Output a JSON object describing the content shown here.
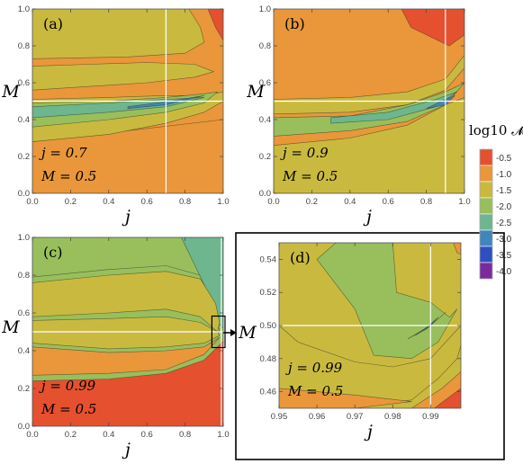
{
  "chart_data": [
    {
      "id": "a",
      "type": "contour",
      "panel_label": "(a)",
      "xlabel": "j",
      "ylabel": "M",
      "xlim": [
        0,
        1
      ],
      "ylim": [
        0,
        1
      ],
      "xticks": [
        "0.0",
        "0.2",
        "0.4",
        "0.6",
        "0.8",
        "1.0"
      ],
      "yticks": [
        "0.0",
        "0.2",
        "0.4",
        "0.6",
        "0.8",
        "1.0"
      ],
      "crosshair": {
        "j": 0.7,
        "M": 0.5
      },
      "annotation": [
        "j = 0.7",
        "M = 0.5"
      ],
      "regions": [
        {
          "level": -1.0,
          "polygon": [
            [
              0,
              0
            ],
            [
              1,
              0
            ],
            [
              1,
              0.4
            ],
            [
              0,
              0.28
            ]
          ]
        },
        {
          "level": -1.5,
          "polygon": [
            [
              0,
              0.28
            ],
            [
              0.4,
              0.32
            ],
            [
              0.7,
              0.38
            ],
            [
              0.9,
              0.44
            ],
            [
              1,
              0.5
            ],
            [
              1,
              0.55
            ],
            [
              0.9,
              0.53
            ],
            [
              0.7,
              0.53
            ],
            [
              0.4,
              0.52
            ],
            [
              0,
              0.51
            ]
          ]
        },
        {
          "level": -2.0,
          "polygon": [
            [
              0,
              0.36
            ],
            [
              0.4,
              0.4
            ],
            [
              0.7,
              0.44
            ],
            [
              0.9,
              0.49
            ],
            [
              0.97,
              0.55
            ],
            [
              0.9,
              0.54
            ],
            [
              0.7,
              0.52
            ],
            [
              0.4,
              0.5
            ],
            [
              0,
              0.49
            ]
          ]
        },
        {
          "level": -2.5,
          "polygon": [
            [
              0,
              0.41
            ],
            [
              0.4,
              0.44
            ],
            [
              0.7,
              0.47
            ],
            [
              0.9,
              0.52
            ],
            [
              0.7,
              0.51
            ],
            [
              0.4,
              0.49
            ],
            [
              0,
              0.47
            ]
          ]
        },
        {
          "level": -3.0,
          "polygon": [
            [
              0.5,
              0.46
            ],
            [
              0.7,
              0.48
            ],
            [
              0.9,
              0.53
            ],
            [
              0.72,
              0.5
            ],
            [
              0.5,
              0.47
            ]
          ]
        },
        {
          "level": -1.5,
          "polygon": [
            [
              0,
              0.56
            ],
            [
              0.3,
              0.58
            ],
            [
              0.6,
              0.6
            ],
            [
              0.85,
              0.63
            ],
            [
              0.95,
              0.66
            ],
            [
              0.85,
              0.7
            ],
            [
              0.6,
              0.71
            ],
            [
              0.3,
              0.7
            ],
            [
              0,
              0.69
            ]
          ]
        },
        {
          "level": -1.5,
          "polygon": [
            [
              0,
              0.73
            ],
            [
              0.5,
              0.74
            ],
            [
              0.8,
              0.76
            ],
            [
              0.9,
              0.82
            ],
            [
              0.88,
              0.9
            ],
            [
              0.82,
              1
            ],
            [
              0,
              1
            ]
          ]
        },
        {
          "level": -0.5,
          "polygon": [
            [
              0.92,
              1
            ],
            [
              1,
              1
            ],
            [
              1,
              0.83
            ],
            [
              0.96,
              0.9
            ]
          ]
        }
      ]
    },
    {
      "id": "b",
      "type": "contour",
      "panel_label": "(b)",
      "xlabel": "j",
      "ylabel": "",
      "xlim": [
        0,
        1
      ],
      "ylim": [
        0,
        1
      ],
      "xticks": [
        "0.0",
        "0.2",
        "0.4",
        "0.6",
        "0.8",
        "1.0"
      ],
      "yticks": [
        "0.0",
        "0.2",
        "0.4",
        "0.6",
        "0.8",
        "1.0"
      ],
      "crosshair": {
        "j": 0.9,
        "M": 0.5
      },
      "annotation": [
        "j = 0.9",
        "M = 0.5"
      ],
      "regions": [
        {
          "level": -1.5,
          "polygon": [
            [
              0,
              0
            ],
            [
              1,
              0
            ],
            [
              1,
              0.52
            ],
            [
              0.9,
              0.48
            ],
            [
              0.7,
              0.37
            ],
            [
              0.4,
              0.3
            ],
            [
              0,
              0.26
            ]
          ]
        },
        {
          "level": -1.5,
          "polygon": [
            [
              0,
              0.43
            ],
            [
              0.4,
              0.44
            ],
            [
              0.7,
              0.48
            ],
            [
              0.9,
              0.56
            ],
            [
              1,
              0.68
            ],
            [
              1,
              0.75
            ],
            [
              0.9,
              0.62
            ],
            [
              0.7,
              0.55
            ],
            [
              0.4,
              0.52
            ],
            [
              0,
              0.51
            ]
          ]
        },
        {
          "level": -2.0,
          "polygon": [
            [
              0,
              0.31
            ],
            [
              0.4,
              0.34
            ],
            [
              0.7,
              0.39
            ],
            [
              0.9,
              0.48
            ],
            [
              1,
              0.6
            ],
            [
              0.9,
              0.55
            ],
            [
              0.7,
              0.48
            ],
            [
              0.4,
              0.42
            ],
            [
              0,
              0.41
            ]
          ]
        },
        {
          "level": -2.5,
          "polygon": [
            [
              0.3,
              0.38
            ],
            [
              0.6,
              0.4
            ],
            [
              0.85,
              0.47
            ],
            [
              0.96,
              0.55
            ],
            [
              0.85,
              0.51
            ],
            [
              0.6,
              0.44
            ],
            [
              0.3,
              0.41
            ]
          ]
        },
        {
          "level": -3.0,
          "polygon": [
            [
              0.8,
              0.46
            ],
            [
              0.9,
              0.48
            ],
            [
              0.95,
              0.53
            ],
            [
              0.88,
              0.5
            ]
          ]
        },
        {
          "level": -0.5,
          "polygon": [
            [
              0.67,
              1
            ],
            [
              1,
              1
            ],
            [
              1,
              0.86
            ],
            [
              0.92,
              0.8
            ],
            [
              0.72,
              0.9
            ]
          ]
        }
      ]
    },
    {
      "id": "c",
      "type": "contour",
      "panel_label": "(c)",
      "xlabel": "j",
      "ylabel": "M",
      "xlim": [
        0,
        1
      ],
      "ylim": [
        0,
        1
      ],
      "xticks": [
        "0.0",
        "0.2",
        "0.4",
        "0.6",
        "0.8",
        "1.0"
      ],
      "yticks": [
        "0.0",
        "0.2",
        "0.4",
        "0.6",
        "0.8",
        "1.0"
      ],
      "crosshair": {
        "j": 0.99,
        "M": 0.5
      },
      "annotation": [
        "j = 0.99",
        "M = 0.5"
      ],
      "regions": [
        {
          "level": -2.0,
          "polygon": [
            [
              0,
              0.79
            ],
            [
              0.4,
              0.83
            ],
            [
              0.7,
              0.85
            ],
            [
              0.88,
              0.8
            ],
            [
              0.96,
              0.65
            ],
            [
              0.98,
              0.5
            ],
            [
              1,
              0.5
            ],
            [
              1,
              1
            ],
            [
              0,
              1
            ]
          ]
        },
        {
          "level": -2.5,
          "polygon": [
            [
              0.78,
              1
            ],
            [
              1,
              1
            ],
            [
              1,
              0.52
            ],
            [
              0.97,
              0.55
            ],
            [
              0.9,
              0.75
            ]
          ]
        },
        {
          "level": -1.5,
          "polygon": [
            [
              0,
              0.58
            ],
            [
              0.4,
              0.6
            ],
            [
              0.7,
              0.62
            ],
            [
              0.88,
              0.58
            ],
            [
              0.97,
              0.5
            ],
            [
              0.98,
              0.55
            ],
            [
              0.96,
              0.65
            ],
            [
              0.88,
              0.78
            ],
            [
              0.7,
              0.82
            ],
            [
              0.4,
              0.8
            ],
            [
              0,
              0.76
            ]
          ]
        },
        {
          "level": -1.5,
          "polygon": [
            [
              0,
              0.44
            ],
            [
              0.4,
              0.41
            ],
            [
              0.7,
              0.42
            ],
            [
              0.9,
              0.44
            ],
            [
              0.98,
              0.48
            ],
            [
              0.97,
              0.5
            ],
            [
              0.88,
              0.55
            ],
            [
              0.7,
              0.58
            ],
            [
              0.4,
              0.57
            ],
            [
              0,
              0.56
            ]
          ]
        },
        {
          "level": -1.0,
          "polygon": [
            [
              0,
              0.27
            ],
            [
              0.4,
              0.28
            ],
            [
              0.7,
              0.3
            ],
            [
              0.9,
              0.38
            ],
            [
              0.98,
              0.47
            ],
            [
              0.9,
              0.42
            ],
            [
              0.7,
              0.4
            ],
            [
              0.4,
              0.39
            ],
            [
              0,
              0.42
            ]
          ]
        },
        {
          "level": -0.5,
          "polygon": [
            [
              0,
              0
            ],
            [
              1,
              0
            ],
            [
              1,
              0.45
            ],
            [
              0.9,
              0.35
            ],
            [
              0.7,
              0.28
            ],
            [
              0.4,
              0.25
            ],
            [
              0,
              0.24
            ]
          ]
        }
      ],
      "inset_box": {
        "j": [
          0.95,
          1.0
        ],
        "M": [
          0.45,
          0.55
        ]
      }
    },
    {
      "id": "d",
      "type": "contour",
      "panel_label": "(d)",
      "xlabel": "j",
      "ylabel": "",
      "xlim": [
        0.95,
        0.998
      ],
      "ylim": [
        0.45,
        0.55
      ],
      "xticks": [
        "0.95",
        "0.96",
        "0.97",
        "0.98",
        "0.99"
      ],
      "yticks": [
        "0.46",
        "0.48",
        "0.50",
        "0.52",
        "0.54"
      ],
      "crosshair": {
        "j": 0.99,
        "M": 0.5
      },
      "annotation": [
        "j = 0.99",
        "M = 0.5"
      ],
      "regions": [
        {
          "level": -1.5,
          "polygon": [
            [
              0.95,
              0.456
            ],
            [
              0.975,
              0.452
            ],
            [
              0.985,
              0.455
            ],
            [
              0.992,
              0.468
            ],
            [
              0.997,
              0.48
            ],
            [
              0.998,
              0.488
            ],
            [
              0.998,
              0.5
            ],
            [
              0.99,
              0.48
            ],
            [
              0.98,
              0.475
            ],
            [
              0.97,
              0.478
            ],
            [
              0.955,
              0.49
            ],
            [
              0.95,
              0.5
            ]
          ]
        },
        {
          "level": -2.0,
          "polygon": [
            [
              0.965,
              0.55
            ],
            [
              0.98,
              0.55
            ],
            [
              0.981,
              0.52
            ],
            [
              0.99,
              0.514
            ],
            [
              0.995,
              0.505
            ],
            [
              0.997,
              0.51
            ],
            [
              0.992,
              0.49
            ],
            [
              0.985,
              0.48
            ],
            [
              0.975,
              0.482
            ],
            [
              0.97,
              0.51
            ],
            [
              0.96,
              0.54
            ]
          ]
        },
        {
          "level": -1.0,
          "polygon": [
            [
              0.95,
              0.45
            ],
            [
              0.97,
              0.45
            ],
            [
              0.985,
              0.454
            ],
            [
              0.97,
              0.458
            ],
            [
              0.95,
              0.462
            ]
          ]
        },
        {
          "level": -1.0,
          "polygon": [
            [
              0.985,
              0.45
            ],
            [
              0.998,
              0.45
            ],
            [
              0.998,
              0.472
            ],
            [
              0.993,
              0.462
            ]
          ]
        },
        {
          "level": -0.5,
          "polygon": [
            [
              0.991,
              0.45
            ],
            [
              0.998,
              0.45
            ],
            [
              0.998,
              0.462
            ]
          ]
        },
        {
          "level": -2.5,
          "polygon": [
            [
              0.984,
              0.492
            ],
            [
              0.99,
              0.5
            ],
            [
              0.994,
              0.508
            ],
            [
              0.989,
              0.498
            ]
          ]
        },
        {
          "level": -3.0,
          "polygon": [
            [
              0.986,
              0.494
            ],
            [
              0.99,
              0.5
            ],
            [
              0.992,
              0.505
            ],
            [
              0.989,
              0.499
            ]
          ]
        },
        {
          "level": -1.0,
          "polygon": [
            [
              0.996,
              0.55
            ],
            [
              0.998,
              0.55
            ],
            [
              0.998,
              0.543
            ],
            [
              0.997,
              0.544
            ]
          ]
        }
      ]
    }
  ],
  "colorbar": {
    "title": "log10 𝓜",
    "levels": [
      -0.5,
      -1.0,
      -1.5,
      -2.0,
      -2.5,
      -3.0,
      -3.5,
      -4.0
    ],
    "tick_labels": [
      "-0.5",
      "-1.0",
      "-1.5",
      "-2.0",
      "-2.5",
      "-3.0",
      "-3.5",
      "-4.0"
    ],
    "colors": [
      "#E5502F",
      "#E9973A",
      "#C9BA3F",
      "#98BF5C",
      "#6DB68E",
      "#3F86BD",
      "#2D4FC0",
      "#7A2A9C"
    ]
  },
  "base_colors": {
    "a": "#E9973A",
    "b": "#E9973A",
    "c": "#98BF5C",
    "d": "#C9BA3F"
  }
}
